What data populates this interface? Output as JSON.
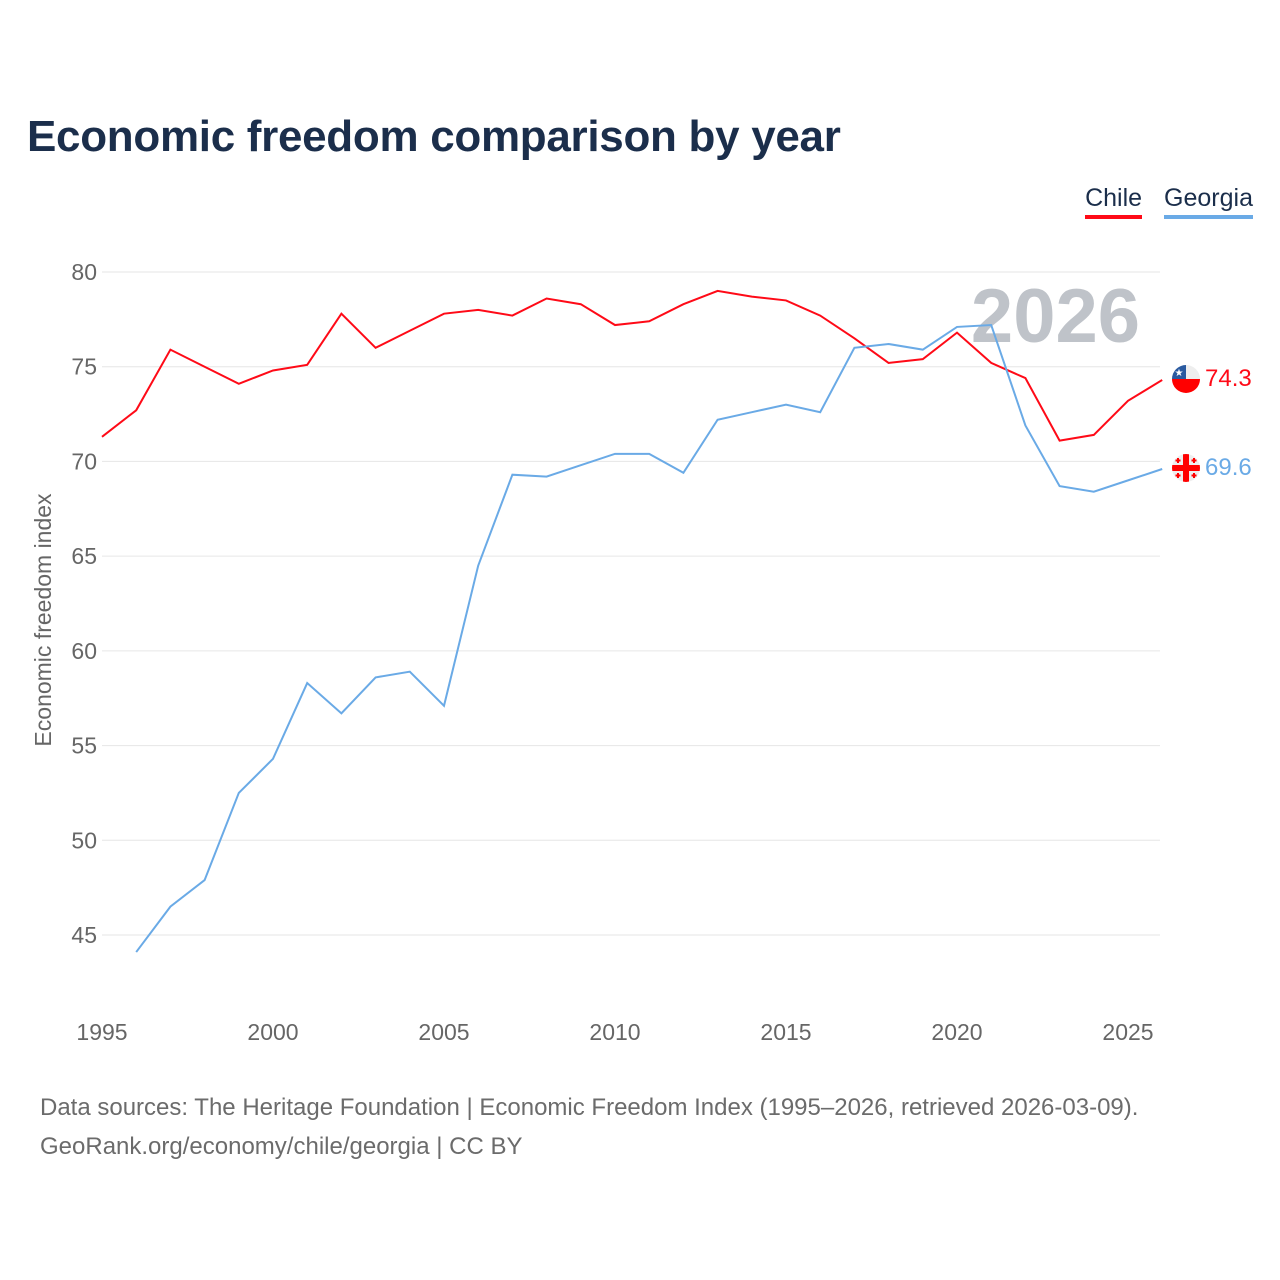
{
  "chart_data": {
    "type": "line",
    "title": "Economic freedom comparison by year",
    "xlabel": "",
    "ylabel": "Economic freedom index",
    "xlim": [
      1995,
      2026
    ],
    "ylim": [
      42,
      81
    ],
    "xticks": [
      1995,
      2000,
      2005,
      2010,
      2015,
      2020,
      2025
    ],
    "yticks": [
      45,
      50,
      55,
      60,
      65,
      70,
      75,
      80
    ],
    "grid": true,
    "legend_position": "top-right",
    "annotation": "2026",
    "series": [
      {
        "name": "Chile",
        "color": "#ff0a17",
        "end_label": "74.3",
        "x": [
          1995,
          1996,
          1997,
          1998,
          1999,
          2000,
          2001,
          2002,
          2003,
          2004,
          2005,
          2006,
          2007,
          2008,
          2009,
          2010,
          2011,
          2012,
          2013,
          2014,
          2015,
          2016,
          2017,
          2018,
          2019,
          2020,
          2021,
          2022,
          2023,
          2024,
          2025,
          2026
        ],
        "values": [
          71.3,
          72.7,
          75.9,
          75.0,
          74.1,
          74.8,
          75.1,
          77.8,
          76.0,
          76.9,
          77.8,
          78.0,
          77.7,
          78.6,
          78.3,
          77.2,
          77.4,
          78.3,
          79.0,
          78.7,
          78.5,
          77.7,
          76.5,
          75.2,
          75.4,
          76.8,
          75.2,
          74.4,
          71.1,
          71.4,
          73.2,
          74.3
        ]
      },
      {
        "name": "Georgia",
        "color": "#6aaae6",
        "end_label": "69.6",
        "x": [
          1996,
          1997,
          1998,
          1999,
          2000,
          2001,
          2002,
          2003,
          2004,
          2005,
          2006,
          2007,
          2008,
          2009,
          2010,
          2011,
          2012,
          2013,
          2014,
          2015,
          2016,
          2017,
          2018,
          2019,
          2020,
          2021,
          2022,
          2023,
          2024,
          2025,
          2026
        ],
        "values": [
          44.1,
          46.5,
          47.9,
          52.5,
          54.3,
          58.3,
          56.7,
          58.6,
          58.9,
          57.1,
          64.5,
          69.3,
          69.2,
          69.8,
          70.4,
          70.4,
          69.4,
          72.2,
          72.6,
          73.0,
          72.6,
          76.0,
          76.2,
          75.9,
          77.1,
          77.2,
          71.9,
          68.7,
          68.4,
          69.0,
          69.6
        ]
      }
    ]
  },
  "footer": {
    "line1": "Data sources: The Heritage Foundation | Economic Freedom Index (1995–2026, retrieved 2026-03-09).",
    "line2": "GeoRank.org/economy/chile/georgia | CC BY"
  }
}
